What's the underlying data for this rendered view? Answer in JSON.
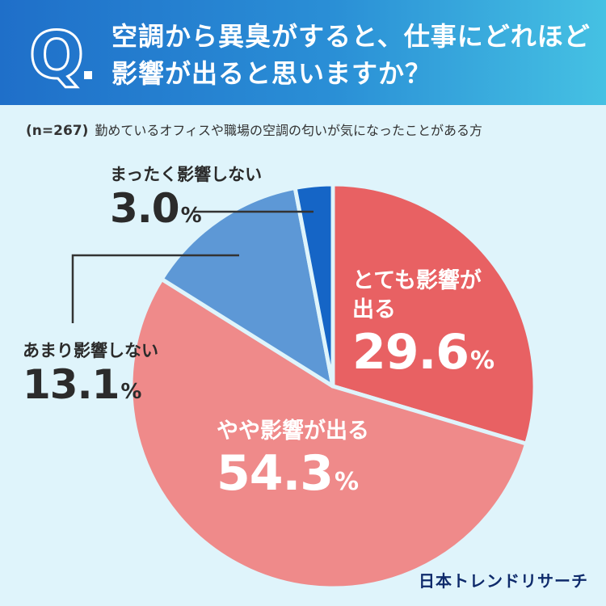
{
  "header": {
    "q_label": "Q",
    "title_line1": "空調から異臭がすると、仕事にどれほど",
    "title_line2": "影響が出ると思いますか？"
  },
  "sample": {
    "n_label": "(n=267)",
    "subject": "勤めているオフィスや職場の空調の匂いが気になったことがある方"
  },
  "chart_data": {
    "type": "pie",
    "title": "空調から異臭がすると、仕事にどれほど影響が出ると思いますか？",
    "start_angle_deg": 0,
    "direction": "clockwise",
    "unit": "%",
    "slices": [
      {
        "label": "とても影響が出る",
        "value": 29.6,
        "color": "#e86163"
      },
      {
        "label": "やや影響が出る",
        "value": 54.3,
        "color": "#ef8a8a"
      },
      {
        "label": "あまり影響しない",
        "value": 13.1,
        "color": "#5d98d6"
      },
      {
        "label": "まったく影響しない",
        "value": 3.0,
        "color": "#1565c6"
      }
    ]
  },
  "labels": {
    "slice0_pct": "29.6",
    "slice1_pct": "54.3",
    "slice2_pct": "13.1",
    "slice3_pct": "3.0",
    "pct_unit": "%"
  },
  "brand": "日本トレンドリサーチ",
  "colors": {
    "background": "#dff4fb",
    "header_start": "#1f6fc9",
    "header_end": "#45c1e3",
    "leader_line": "#333333"
  }
}
